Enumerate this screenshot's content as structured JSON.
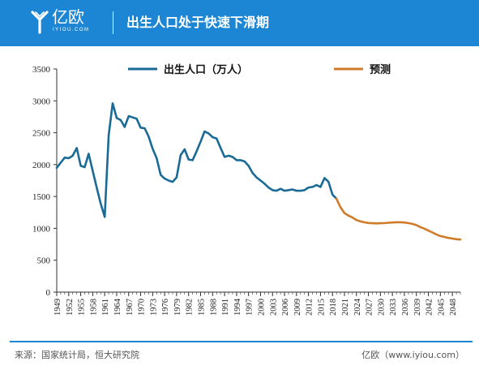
{
  "header": {
    "brand_main": "亿欧",
    "brand_sub": "IYIOU.COM",
    "title": "出生人口处于快速下滑期"
  },
  "footer": {
    "source": "来源：国家统计局，恒大研究院",
    "credit": "亿欧（www.iyiou.com）"
  },
  "colors": {
    "header_bg": "#1d86d4",
    "actual_line": "#1a6a96",
    "forecast_line": "#d07b27"
  },
  "chart_data": {
    "type": "line",
    "title": "",
    "xlabel": "",
    "ylabel": "",
    "ylim": [
      0,
      3500
    ],
    "yticks": [
      0,
      500,
      1000,
      1500,
      2000,
      2500,
      3000,
      3500
    ],
    "xlim": [
      1949,
      2050
    ],
    "xticks": [
      "1949",
      "1952",
      "1955",
      "1958",
      "1961",
      "1964",
      "1967",
      "1970",
      "1973",
      "1976",
      "1979",
      "1982",
      "1985",
      "1988",
      "1991",
      "1994",
      "1997",
      "2000",
      "2003",
      "2006",
      "2009",
      "2012",
      "2015",
      "2018",
      "2021",
      "2024",
      "2027",
      "2030",
      "2033",
      "2036",
      "2039",
      "2042",
      "2045",
      "2048"
    ],
    "legend_position": "top",
    "grid": false,
    "series": [
      {
        "name": "出生人口（万人）",
        "x": [
          1949,
          1950,
          1951,
          1952,
          1953,
          1954,
          1955,
          1956,
          1957,
          1958,
          1959,
          1960,
          1961,
          1962,
          1963,
          1964,
          1965,
          1966,
          1967,
          1968,
          1969,
          1970,
          1971,
          1972,
          1973,
          1974,
          1975,
          1976,
          1977,
          1978,
          1979,
          1980,
          1981,
          1982,
          1983,
          1984,
          1985,
          1986,
          1987,
          1988,
          1989,
          1990,
          1991,
          1992,
          1993,
          1994,
          1995,
          1996,
          1997,
          1998,
          1999,
          2000,
          2001,
          2002,
          2003,
          2004,
          2005,
          2006,
          2007,
          2008,
          2009,
          2010,
          2011,
          2012,
          2013,
          2014,
          2015,
          2016,
          2017,
          2018,
          2019
        ],
        "values": [
          1950,
          2030,
          2110,
          2100,
          2140,
          2260,
          1980,
          1960,
          2170,
          1900,
          1640,
          1390,
          1180,
          2460,
          2960,
          2730,
          2700,
          2590,
          2760,
          2740,
          2720,
          2580,
          2570,
          2440,
          2250,
          2100,
          1840,
          1780,
          1750,
          1730,
          1800,
          2150,
          2240,
          2080,
          2070,
          2210,
          2360,
          2520,
          2490,
          2430,
          2410,
          2260,
          2120,
          2140,
          2120,
          2070,
          2070,
          2050,
          1980,
          1870,
          1800,
          1750,
          1700,
          1640,
          1600,
          1590,
          1620,
          1590,
          1600,
          1610,
          1590,
          1590,
          1600,
          1640,
          1650,
          1680,
          1650,
          1790,
          1730,
          1530,
          1465
        ]
      },
      {
        "name": "预测",
        "x": [
          2019,
          2020,
          2021,
          2022,
          2023,
          2024,
          2025,
          2026,
          2027,
          2028,
          2029,
          2030,
          2031,
          2032,
          2033,
          2034,
          2035,
          2036,
          2037,
          2038,
          2039,
          2040,
          2041,
          2042,
          2043,
          2044,
          2045,
          2046,
          2047,
          2048,
          2049,
          2050
        ],
        "values": [
          1465,
          1330,
          1240,
          1200,
          1170,
          1130,
          1110,
          1095,
          1085,
          1080,
          1078,
          1080,
          1082,
          1088,
          1092,
          1096,
          1096,
          1092,
          1082,
          1070,
          1050,
          1020,
          995,
          965,
          935,
          905,
          880,
          865,
          850,
          840,
          830,
          825
        ]
      }
    ]
  }
}
